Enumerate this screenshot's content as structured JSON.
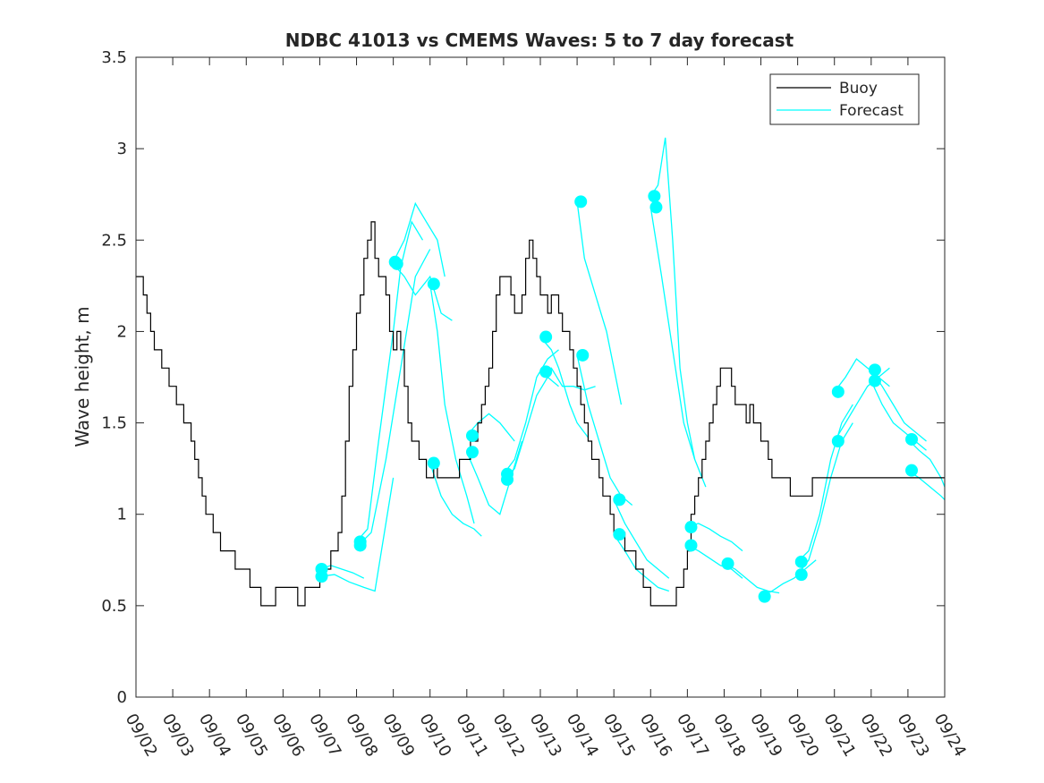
{
  "chart_data": {
    "type": "line",
    "title": "NDBC 41013 vs CMEMS Waves: 5 to 7 day forecast",
    "xlabel": "",
    "ylabel": "Wave height, m",
    "x_tick_labels": [
      "09/02",
      "09/03",
      "09/04",
      "09/05",
      "09/06",
      "09/07",
      "09/08",
      "09/09",
      "09/10",
      "09/11",
      "09/12",
      "09/13",
      "09/14",
      "09/15",
      "09/16",
      "09/17",
      "09/18",
      "09/19",
      "09/20",
      "09/21",
      "09/22",
      "09/23",
      "09/24"
    ],
    "xlim_days": [
      0,
      22
    ],
    "ylim": [
      0,
      3.5
    ],
    "y_ticks": [
      0,
      0.5,
      1,
      1.5,
      2,
      2.5,
      3,
      3.5
    ],
    "y_tick_labels": [
      "0",
      "0.5",
      "1",
      "1.5",
      "2",
      "2.5",
      "3",
      "3.5"
    ],
    "grid": false,
    "legend_position": "top-right",
    "colors": {
      "buoy": "#000000",
      "forecast": "#00ffff",
      "axis": "#262626"
    },
    "series": [
      {
        "name": "Buoy",
        "style": "line",
        "x": [
          0,
          0.1,
          0.2,
          0.3,
          0.4,
          0.5,
          0.6,
          0.7,
          0.8,
          0.9,
          1.0,
          1.1,
          1.2,
          1.3,
          1.4,
          1.5,
          1.6,
          1.7,
          1.8,
          1.9,
          2.0,
          2.1,
          2.2,
          2.3,
          2.4,
          2.5,
          2.6,
          2.7,
          2.8,
          2.9,
          3.0,
          3.1,
          3.2,
          3.3,
          3.4,
          3.5,
          3.6,
          3.7,
          3.8,
          3.9,
          4.0,
          4.1,
          4.2,
          4.3,
          4.4,
          4.5,
          4.6,
          4.7,
          4.8,
          4.9,
          5.0,
          5.1,
          5.2,
          5.3,
          5.4,
          5.5,
          5.6,
          5.7,
          5.8,
          5.9,
          6.0,
          6.1,
          6.2,
          6.3,
          6.4,
          6.5,
          6.6,
          6.7,
          6.8,
          6.9,
          7.0,
          7.1,
          7.2,
          7.3,
          7.4,
          7.5,
          7.6,
          7.7,
          7.8,
          7.9,
          8.0,
          8.1,
          8.2,
          8.3,
          8.4,
          8.5,
          8.6,
          8.7,
          8.8,
          8.9,
          9.0,
          9.1,
          9.2,
          9.3,
          9.4,
          9.5,
          9.6,
          9.7,
          9.8,
          9.9,
          10.0,
          10.1,
          10.2,
          10.3,
          10.4,
          10.5,
          10.6,
          10.7,
          10.8,
          10.9,
          11.0,
          11.1,
          11.2,
          11.3,
          11.4,
          11.5,
          11.6,
          11.7,
          11.8,
          11.9,
          12.0,
          12.1,
          12.2,
          12.3,
          12.4,
          12.5,
          12.6,
          12.7,
          12.8,
          12.9,
          13.0,
          13.1,
          13.2,
          13.3,
          13.4,
          13.5,
          13.6,
          13.7,
          13.8,
          13.9,
          14.0,
          14.1,
          14.2,
          14.3,
          14.4,
          14.5,
          14.6,
          14.7,
          14.8,
          14.9,
          15.0,
          15.1,
          15.2,
          15.3,
          15.4,
          15.5,
          15.6,
          15.7,
          15.8,
          15.9,
          16.0,
          16.1,
          16.2,
          16.3,
          16.4,
          16.5,
          16.6,
          16.7,
          16.8,
          16.9,
          17.0,
          17.1,
          17.2,
          17.3,
          17.4,
          17.5,
          17.6,
          17.7,
          17.8,
          17.9,
          18.0,
          18.1,
          18.2,
          18.3,
          18.4,
          18.5,
          18.6,
          18.7,
          18.8,
          18.9,
          19.0,
          19.1,
          19.2,
          19.3,
          19.4,
          19.5,
          19.6,
          19.7,
          19.8,
          19.9,
          20.0,
          20.1,
          20.2,
          20.3,
          20.4,
          20.5,
          20.6,
          20.7,
          20.8,
          20.9,
          21.0,
          21.1,
          21.2,
          21.3,
          21.4,
          21.5,
          21.6,
          21.7,
          21.8,
          21.9,
          22.0
        ],
        "values": [
          2.3,
          2.3,
          2.2,
          2.1,
          2.0,
          1.9,
          1.9,
          1.8,
          1.8,
          1.7,
          1.7,
          1.6,
          1.6,
          1.5,
          1.5,
          1.4,
          1.3,
          1.2,
          1.1,
          1.0,
          1.0,
          0.9,
          0.9,
          0.8,
          0.8,
          0.8,
          0.8,
          0.7,
          0.7,
          0.7,
          0.7,
          0.6,
          0.6,
          0.6,
          0.5,
          0.5,
          0.5,
          0.5,
          0.6,
          0.6,
          0.6,
          0.6,
          0.6,
          0.6,
          0.5,
          0.5,
          0.6,
          0.6,
          0.6,
          0.6,
          0.7,
          0.7,
          0.7,
          0.8,
          0.8,
          0.9,
          1.1,
          1.4,
          1.7,
          1.9,
          2.1,
          2.2,
          2.4,
          2.5,
          2.6,
          2.4,
          2.3,
          2.3,
          2.2,
          2.0,
          1.9,
          2.0,
          1.9,
          1.7,
          1.5,
          1.4,
          1.4,
          1.3,
          1.3,
          1.2,
          1.2,
          1.3,
          1.2,
          1.2,
          1.2,
          1.2,
          1.2,
          1.2,
          1.3,
          1.3,
          1.3,
          1.4,
          1.4,
          1.5,
          1.6,
          1.7,
          1.8,
          2.0,
          2.2,
          2.3,
          2.3,
          2.3,
          2.2,
          2.1,
          2.1,
          2.2,
          2.4,
          2.5,
          2.4,
          2.3,
          2.2,
          2.2,
          2.1,
          2.2,
          2.2,
          2.1,
          2.0,
          2.0,
          1.9,
          1.8,
          1.7,
          1.6,
          1.5,
          1.4,
          1.3,
          1.3,
          1.2,
          1.1,
          1.1,
          1.0,
          0.9,
          0.9,
          0.9,
          0.8,
          0.8,
          0.8,
          0.7,
          0.7,
          0.6,
          0.6,
          0.5,
          0.5,
          0.5,
          0.5,
          0.5,
          0.5,
          0.5,
          0.6,
          0.6,
          0.7,
          0.8,
          1.0,
          1.1,
          1.2,
          1.3,
          1.4,
          1.5,
          1.6,
          1.7,
          1.8,
          1.8,
          1.8,
          1.7,
          1.6,
          1.6,
          1.6,
          1.5,
          1.6,
          1.5,
          1.5,
          1.4,
          1.4,
          1.3,
          1.2,
          1.2,
          1.2,
          1.2,
          1.2,
          1.1,
          1.1,
          1.1,
          1.1,
          1.1,
          1.1,
          1.2,
          1.2,
          1.2,
          1.2,
          1.2,
          1.2,
          1.2,
          1.2,
          1.2,
          1.2,
          1.2,
          1.2,
          1.2,
          1.2,
          1.2,
          1.2,
          1.2,
          1.2,
          1.2,
          1.2,
          1.2,
          1.2,
          1.2,
          1.2,
          1.2,
          1.2,
          1.2,
          1.2,
          1.2,
          1.2,
          1.2,
          1.2,
          1.2,
          1.2,
          1.2,
          1.2,
          1.2
        ]
      },
      {
        "name": "Forecast",
        "style": "line",
        "segments": [
          {
            "x": [
              5.0,
              5.3,
              5.6,
              5.9,
              6.2
            ],
            "values": [
              0.7,
              0.72,
              0.7,
              0.68,
              0.65
            ]
          },
          {
            "x": [
              5.0,
              5.4,
              5.8,
              6.2,
              6.5,
              7.0
            ],
            "values": [
              0.66,
              0.67,
              0.63,
              0.6,
              0.58,
              1.2
            ]
          },
          {
            "x": [
              6.0,
              6.3,
              6.6,
              7.0,
              7.2,
              7.5,
              7.8
            ],
            "values": [
              0.85,
              0.92,
              1.4,
              2.0,
              2.35,
              2.6,
              2.5
            ]
          },
          {
            "x": [
              6.0,
              6.4,
              6.8,
              7.2,
              7.6,
              8.0
            ],
            "values": [
              0.82,
              0.9,
              1.3,
              1.8,
              2.3,
              2.45
            ]
          },
          {
            "x": [
              7.0,
              7.3,
              7.6,
              7.9,
              8.2,
              8.4
            ],
            "values": [
              2.38,
              2.5,
              2.7,
              2.6,
              2.5,
              2.3
            ]
          },
          {
            "x": [
              7.0,
              7.3,
              7.6,
              8.0,
              8.3,
              8.6
            ],
            "values": [
              2.37,
              2.3,
              2.2,
              2.3,
              2.1,
              2.06
            ]
          },
          {
            "x": [
              8.0,
              8.2,
              8.4,
              8.7,
              9.0,
              9.2
            ],
            "values": [
              2.26,
              2.0,
              1.6,
              1.3,
              1.1,
              0.95
            ]
          },
          {
            "x": [
              8.0,
              8.3,
              8.6,
              8.9,
              9.2,
              9.4
            ],
            "values": [
              1.28,
              1.1,
              1.0,
              0.95,
              0.92,
              0.88
            ]
          },
          {
            "x": [
              9.0,
              9.3,
              9.6,
              9.9,
              10.1,
              10.3
            ],
            "values": [
              1.43,
              1.5,
              1.55,
              1.5,
              1.45,
              1.4
            ]
          },
          {
            "x": [
              9.0,
              9.3,
              9.6,
              9.9,
              10.2,
              10.5
            ],
            "values": [
              1.34,
              1.2,
              1.05,
              1.0,
              1.2,
              1.4
            ]
          },
          {
            "x": [
              10.0,
              10.3,
              10.6,
              10.9,
              11.2,
              11.5
            ],
            "values": [
              1.22,
              1.3,
              1.5,
              1.75,
              1.85,
              1.9
            ]
          },
          {
            "x": [
              10.0,
              10.3,
              10.6,
              10.9,
              11.2,
              11.5
            ],
            "values": [
              1.19,
              1.25,
              1.45,
              1.65,
              1.75,
              1.7
            ]
          },
          {
            "x": [
              11.0,
              11.3,
              11.5,
              11.8,
              12.0,
              12.3
            ],
            "values": [
              1.97,
              1.9,
              1.8,
              1.6,
              1.5,
              1.42
            ]
          },
          {
            "x": [
              11.0,
              11.3,
              11.6,
              11.9,
              12.2,
              12.5
            ],
            "values": [
              1.78,
              1.8,
              1.7,
              1.7,
              1.68,
              1.7
            ]
          },
          {
            "x": [
              12.0,
              12.2,
              12.5,
              12.8,
              13.0,
              13.2
            ],
            "values": [
              2.71,
              2.4,
              2.2,
              2.0,
              1.8,
              1.6
            ]
          },
          {
            "x": [
              12.0,
              12.3,
              12.6,
              12.9,
              13.2,
              13.5
            ],
            "values": [
              1.87,
              1.6,
              1.4,
              1.2,
              1.1,
              1.05
            ]
          },
          {
            "x": [
              13.0,
              13.3,
              13.6,
              13.9,
              14.2,
              14.5
            ],
            "values": [
              1.08,
              0.95,
              0.85,
              0.75,
              0.7,
              0.65
            ]
          },
          {
            "x": [
              13.0,
              13.3,
              13.6,
              13.9,
              14.2,
              14.5
            ],
            "values": [
              0.89,
              0.8,
              0.7,
              0.65,
              0.6,
              0.58
            ]
          },
          {
            "x": [
              14.0,
              14.2,
              14.4,
              14.6,
              14.8,
              15.0,
              15.2
            ],
            "values": [
              2.74,
              2.8,
              3.06,
              2.5,
              1.8,
              1.5,
              1.3
            ]
          },
          {
            "x": [
              14.0,
              14.3,
              14.6,
              14.9,
              15.2,
              15.5
            ],
            "values": [
              2.68,
              2.3,
              1.9,
              1.5,
              1.3,
              1.15
            ]
          },
          {
            "x": [
              15.0,
              15.3,
              15.6,
              15.9,
              16.2,
              16.5
            ],
            "values": [
              0.93,
              0.95,
              0.92,
              0.88,
              0.85,
              0.8
            ]
          },
          {
            "x": [
              15.0,
              15.3,
              15.6,
              15.9,
              16.2,
              16.5
            ],
            "values": [
              0.83,
              0.8,
              0.76,
              0.72,
              0.7,
              0.65
            ]
          },
          {
            "x": [
              16.0,
              16.3,
              16.6,
              16.9,
              17.2,
              17.5
            ],
            "values": [
              0.73,
              0.7,
              0.65,
              0.6,
              0.58,
              0.57
            ]
          },
          {
            "x": [
              17.0,
              17.3,
              17.6,
              17.9,
              18.2,
              18.5
            ],
            "values": [
              0.55,
              0.58,
              0.62,
              0.65,
              0.7,
              0.75
            ]
          },
          {
            "x": [
              18.0,
              18.3,
              18.6,
              18.9,
              19.2,
              19.5
            ],
            "values": [
              0.74,
              0.8,
              1.0,
              1.3,
              1.5,
              1.6
            ]
          },
          {
            "x": [
              18.0,
              18.3,
              18.6,
              18.9,
              19.2,
              19.5
            ],
            "values": [
              0.67,
              0.75,
              0.95,
              1.2,
              1.4,
              1.5
            ]
          },
          {
            "x": [
              19.0,
              19.3,
              19.6,
              19.9,
              20.2,
              20.5
            ],
            "values": [
              1.67,
              1.75,
              1.85,
              1.8,
              1.75,
              1.7
            ]
          },
          {
            "x": [
              19.0,
              19.3,
              19.6,
              19.9,
              20.2,
              20.5
            ],
            "values": [
              1.4,
              1.5,
              1.6,
              1.7,
              1.75,
              1.8
            ]
          },
          {
            "x": [
              20.0,
              20.3,
              20.6,
              20.9,
              21.2,
              21.5
            ],
            "values": [
              1.79,
              1.7,
              1.6,
              1.5,
              1.45,
              1.4
            ]
          },
          {
            "x": [
              20.0,
              20.3,
              20.6,
              20.9,
              21.2,
              21.5
            ],
            "values": [
              1.73,
              1.6,
              1.5,
              1.45,
              1.4,
              1.35
            ]
          },
          {
            "x": [
              21.0,
              21.3,
              21.6,
              21.9,
              22.0
            ],
            "values": [
              1.41,
              1.35,
              1.3,
              1.2,
              1.15
            ]
          },
          {
            "x": [
              21.0,
              21.3,
              21.6,
              21.9,
              22.0
            ],
            "values": [
              1.24,
              1.2,
              1.15,
              1.1,
              1.08
            ]
          }
        ]
      },
      {
        "name": "Forecast markers",
        "style": "markers",
        "x": [
          5.05,
          5.05,
          6.1,
          6.1,
          7.05,
          7.1,
          8.1,
          8.1,
          9.15,
          9.15,
          10.1,
          10.1,
          11.15,
          11.15,
          12.1,
          12.15,
          13.15,
          13.15,
          14.1,
          14.15,
          15.1,
          15.1,
          16.1,
          17.1,
          18.1,
          18.1,
          19.1,
          19.1,
          20.1,
          20.1,
          21.1,
          21.1
        ],
        "values": [
          0.7,
          0.66,
          0.85,
          0.83,
          2.38,
          2.37,
          2.26,
          1.28,
          1.43,
          1.34,
          1.22,
          1.19,
          1.97,
          1.78,
          2.71,
          1.87,
          1.08,
          0.89,
          2.74,
          2.68,
          0.93,
          0.83,
          0.73,
          0.55,
          0.74,
          0.67,
          1.67,
          1.4,
          1.79,
          1.73,
          1.41,
          1.24
        ]
      }
    ],
    "legend": [
      {
        "label": "Buoy",
        "color": "#000000"
      },
      {
        "label": "Forecast",
        "color": "#00ffff"
      }
    ]
  }
}
